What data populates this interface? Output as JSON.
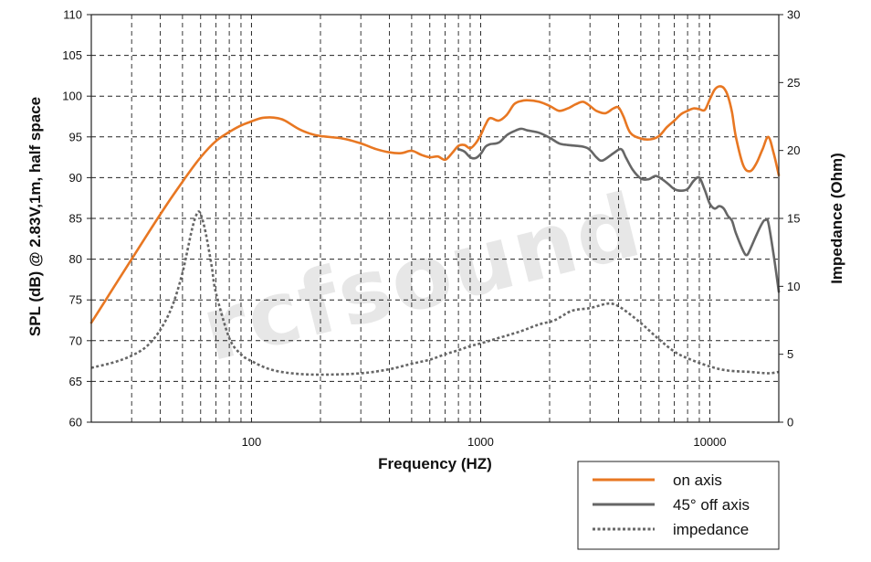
{
  "chart_data": {
    "type": "line",
    "xlabel": "Frequency (HZ)",
    "ylabel": "SPL (dB) @ 2.83V,1m, half space",
    "y2label": "Impedance (Ohm)",
    "xscale": "log",
    "xlim": [
      20,
      20000
    ],
    "ylim": [
      60,
      110
    ],
    "y2lim": [
      0,
      30
    ],
    "xticks": [
      100,
      1000,
      10000
    ],
    "xtick_labels": [
      "100",
      "1000",
      "10000"
    ],
    "yticks": [
      60,
      65,
      70,
      75,
      80,
      85,
      90,
      95,
      100,
      105,
      110
    ],
    "ytick_labels": [
      "60",
      "65",
      "70",
      "75",
      "80",
      "85",
      "90",
      "95",
      "100",
      "105",
      "110"
    ],
    "y2ticks": [
      0,
      5,
      10,
      15,
      20,
      25,
      30
    ],
    "y2tick_labels": [
      "0",
      "5",
      "10",
      "15",
      "20",
      "25",
      "30"
    ],
    "grid": true,
    "legend_position": "bottom-right, below plot",
    "watermark": "rcfsound",
    "series": [
      {
        "name": "on axis",
        "color": "#e87722",
        "style": "solid",
        "axis": "left",
        "points": [
          [
            20,
            72.2
          ],
          [
            25,
            76.5
          ],
          [
            30,
            80
          ],
          [
            40,
            85.5
          ],
          [
            50,
            89.5
          ],
          [
            60,
            92.5
          ],
          [
            70,
            94.5
          ],
          [
            80,
            95.6
          ],
          [
            90,
            96.4
          ],
          [
            100,
            96.9
          ],
          [
            110,
            97.3
          ],
          [
            120,
            97.4
          ],
          [
            130,
            97.3
          ],
          [
            140,
            97.0
          ],
          [
            160,
            96.0
          ],
          [
            180,
            95.4
          ],
          [
            200,
            95.1
          ],
          [
            250,
            94.8
          ],
          [
            300,
            94.2
          ],
          [
            350,
            93.5
          ],
          [
            400,
            93.1
          ],
          [
            450,
            93.0
          ],
          [
            500,
            93.3
          ],
          [
            550,
            92.8
          ],
          [
            600,
            92.5
          ],
          [
            650,
            92.6
          ],
          [
            700,
            92.2
          ],
          [
            750,
            93.0
          ],
          [
            800,
            93.9
          ],
          [
            850,
            94.0
          ],
          [
            900,
            93.6
          ],
          [
            950,
            94.2
          ],
          [
            1000,
            95.2
          ],
          [
            1050,
            96.5
          ],
          [
            1100,
            97.3
          ],
          [
            1200,
            97.0
          ],
          [
            1300,
            97.7
          ],
          [
            1400,
            99.0
          ],
          [
            1500,
            99.4
          ],
          [
            1600,
            99.5
          ],
          [
            1800,
            99.3
          ],
          [
            2000,
            98.8
          ],
          [
            2200,
            98.2
          ],
          [
            2400,
            98.5
          ],
          [
            2600,
            99.0
          ],
          [
            2800,
            99.3
          ],
          [
            3000,
            98.8
          ],
          [
            3200,
            98.2
          ],
          [
            3500,
            97.9
          ],
          [
            3800,
            98.5
          ],
          [
            4000,
            98.6
          ],
          [
            4200,
            97.5
          ],
          [
            4500,
            95.5
          ],
          [
            5000,
            94.8
          ],
          [
            5500,
            94.7
          ],
          [
            6000,
            95.1
          ],
          [
            6500,
            96.2
          ],
          [
            7000,
            97.0
          ],
          [
            7500,
            97.8
          ],
          [
            8000,
            98.2
          ],
          [
            8500,
            98.5
          ],
          [
            9000,
            98.4
          ],
          [
            9500,
            98.3
          ],
          [
            10000,
            99.6
          ],
          [
            10500,
            100.8
          ],
          [
            11000,
            101.2
          ],
          [
            11500,
            101.0
          ],
          [
            12000,
            100.0
          ],
          [
            12500,
            98.0
          ],
          [
            13000,
            95.0
          ],
          [
            14000,
            91.5
          ],
          [
            15000,
            90.8
          ],
          [
            16000,
            91.8
          ],
          [
            17000,
            93.5
          ],
          [
            18000,
            95.0
          ],
          [
            19000,
            93.0
          ],
          [
            20000,
            90.3
          ]
        ]
      },
      {
        "name": "45° off axis",
        "color": "#666666",
        "style": "solid",
        "axis": "left",
        "points": [
          [
            800,
            93.5
          ],
          [
            850,
            93.2
          ],
          [
            900,
            92.5
          ],
          [
            950,
            92.4
          ],
          [
            1000,
            92.9
          ],
          [
            1050,
            93.8
          ],
          [
            1100,
            94.1
          ],
          [
            1200,
            94.3
          ],
          [
            1300,
            95.2
          ],
          [
            1400,
            95.7
          ],
          [
            1500,
            96.0
          ],
          [
            1600,
            95.8
          ],
          [
            1800,
            95.5
          ],
          [
            2000,
            94.9
          ],
          [
            2200,
            94.2
          ],
          [
            2400,
            94.0
          ],
          [
            2800,
            93.8
          ],
          [
            3000,
            93.4
          ],
          [
            3200,
            92.5
          ],
          [
            3400,
            92.1
          ],
          [
            3800,
            93.0
          ],
          [
            4100,
            93.5
          ],
          [
            4300,
            92.5
          ],
          [
            4600,
            91.0
          ],
          [
            5000,
            89.9
          ],
          [
            5400,
            89.8
          ],
          [
            5800,
            90.2
          ],
          [
            6200,
            89.8
          ],
          [
            6600,
            89.2
          ],
          [
            7000,
            88.6
          ],
          [
            7500,
            88.4
          ],
          [
            8000,
            88.6
          ],
          [
            8500,
            89.6
          ],
          [
            9000,
            90.0
          ],
          [
            9500,
            88.5
          ],
          [
            10000,
            86.8
          ],
          [
            10500,
            86.2
          ],
          [
            11000,
            86.5
          ],
          [
            11500,
            86.2
          ],
          [
            12000,
            85.3
          ],
          [
            12500,
            84.7
          ],
          [
            13000,
            83.2
          ],
          [
            14000,
            81.0
          ],
          [
            14500,
            80.5
          ],
          [
            15000,
            81.2
          ],
          [
            16000,
            83.0
          ],
          [
            17000,
            84.5
          ],
          [
            17500,
            84.8
          ],
          [
            18000,
            84.5
          ],
          [
            19000,
            80.5
          ],
          [
            20000,
            76.0
          ]
        ]
      },
      {
        "name": "impedance",
        "color": "#666666",
        "style": "dotted",
        "axis": "right",
        "points": [
          [
            20,
            4.0
          ],
          [
            25,
            4.4
          ],
          [
            30,
            4.9
          ],
          [
            35,
            5.6
          ],
          [
            40,
            6.8
          ],
          [
            45,
            8.5
          ],
          [
            50,
            11.0
          ],
          [
            55,
            14.2
          ],
          [
            58,
            15.4
          ],
          [
            60,
            15.3
          ],
          [
            63,
            14.0
          ],
          [
            67,
            11.5
          ],
          [
            70,
            9.5
          ],
          [
            80,
            6.2
          ],
          [
            90,
            5.0
          ],
          [
            100,
            4.5
          ],
          [
            120,
            3.9
          ],
          [
            150,
            3.6
          ],
          [
            200,
            3.5
          ],
          [
            300,
            3.6
          ],
          [
            400,
            3.9
          ],
          [
            500,
            4.3
          ],
          [
            600,
            4.6
          ],
          [
            700,
            5.0
          ],
          [
            800,
            5.3
          ],
          [
            900,
            5.6
          ],
          [
            1000,
            5.8
          ],
          [
            1200,
            6.2
          ],
          [
            1500,
            6.7
          ],
          [
            1800,
            7.2
          ],
          [
            2100,
            7.5
          ],
          [
            2500,
            8.2
          ],
          [
            3000,
            8.4
          ],
          [
            3500,
            8.7
          ],
          [
            3800,
            8.7
          ],
          [
            4200,
            8.3
          ],
          [
            5000,
            7.3
          ],
          [
            6000,
            6.1
          ],
          [
            7000,
            5.2
          ],
          [
            8000,
            4.7
          ],
          [
            10000,
            4.1
          ],
          [
            12000,
            3.8
          ],
          [
            15000,
            3.7
          ],
          [
            18000,
            3.6
          ],
          [
            20000,
            3.7
          ]
        ]
      }
    ]
  }
}
